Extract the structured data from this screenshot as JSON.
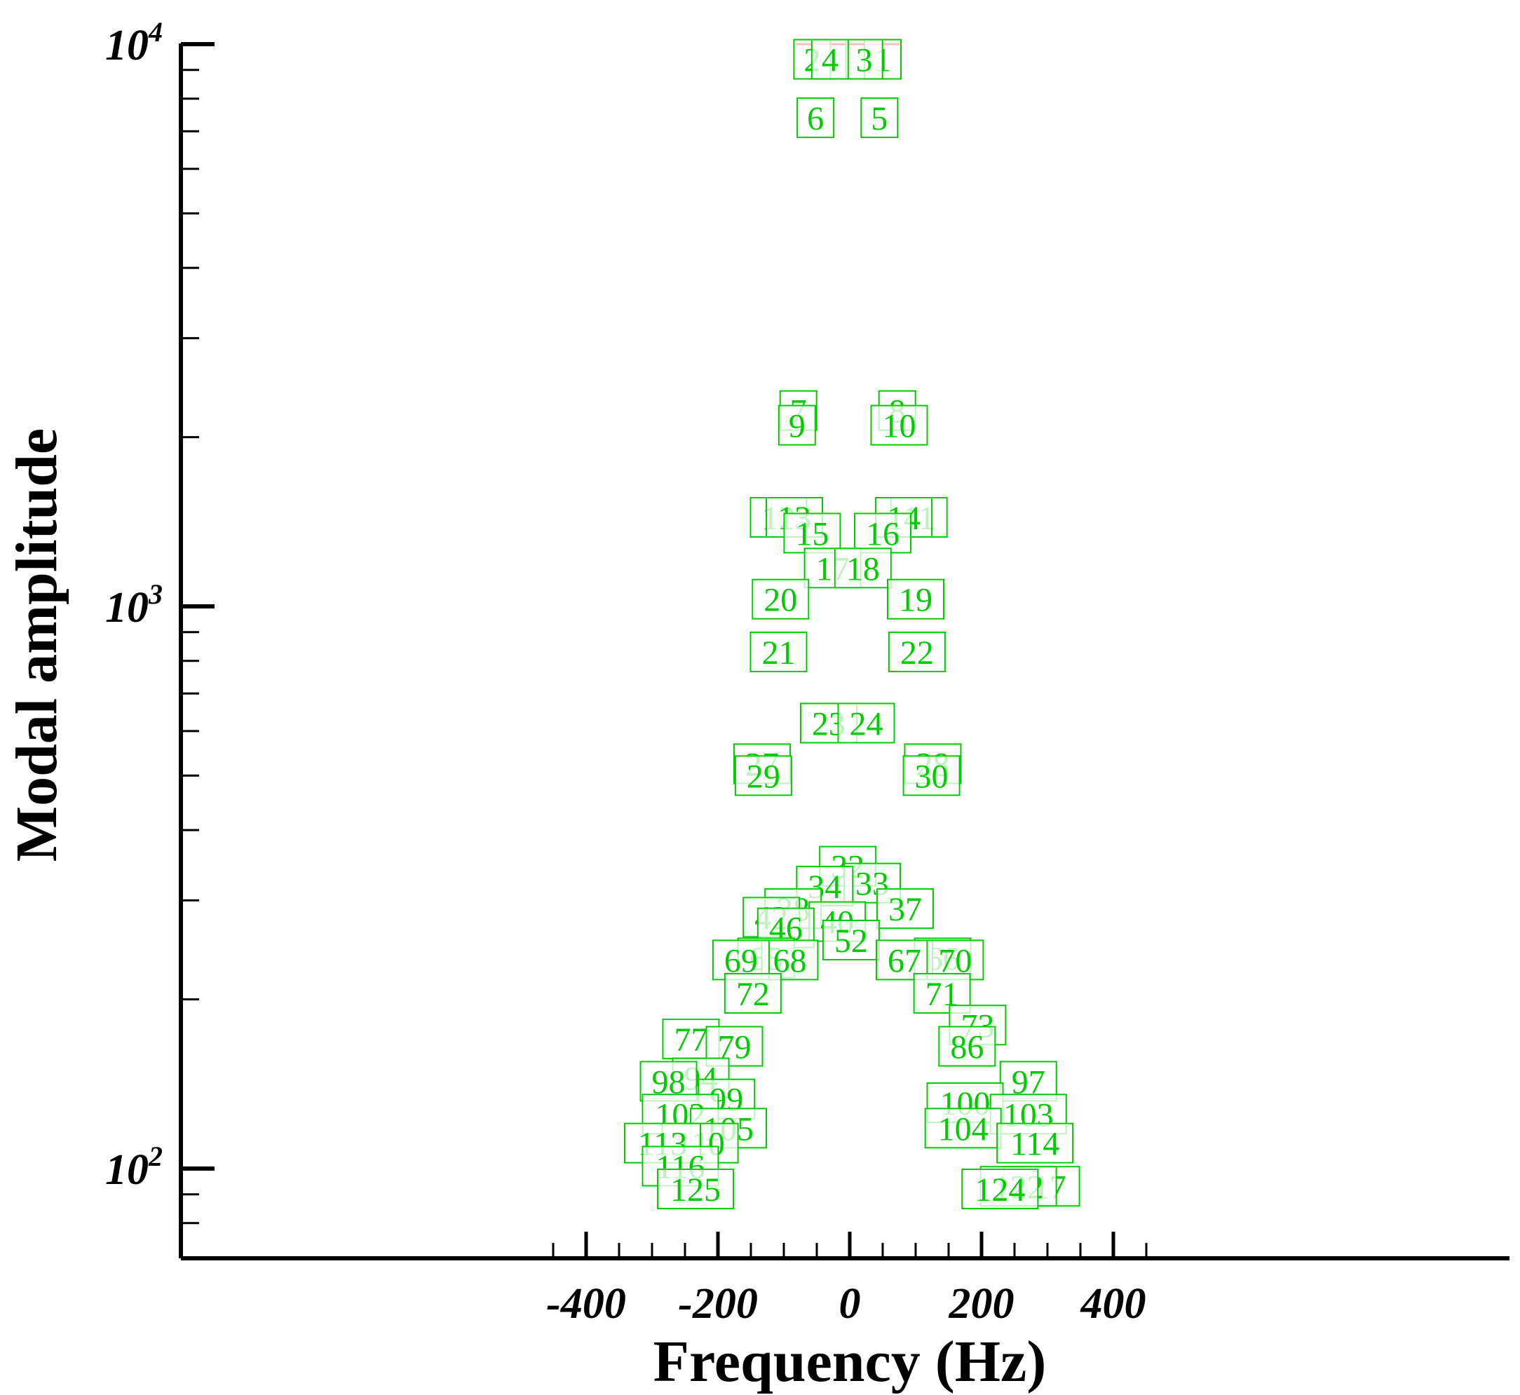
{
  "chart_data": {
    "type": "scatter",
    "title": "",
    "xlabel": "Frequency (Hz)",
    "ylabel": "Modal amplitude",
    "xlim": [
      -500,
      500
    ],
    "ylim": [
      75,
      10000
    ],
    "y_scale": "log",
    "grid": false,
    "x_ticks": [
      -400,
      -200,
      0,
      200,
      400
    ],
    "x_tick_labels": [
      "-400",
      "-200",
      "0",
      "200",
      "400"
    ],
    "y_ticks": [
      100,
      1000,
      10000
    ],
    "y_tick_labels": [
      {
        "base": "10",
        "exp": "2"
      },
      {
        "base": "10",
        "exp": "3"
      },
      {
        "base": "10",
        "exp": "4"
      }
    ],
    "label_color": "#00cc00",
    "marker_color": "#ee0000",
    "points": [
      {
        "label": "1",
        "x": 50,
        "y": 9400
      },
      {
        "label": "2",
        "x": -57,
        "y": 9400
      },
      {
        "label": "3",
        "x": 22,
        "y": 9400
      },
      {
        "label": "4",
        "x": -30,
        "y": 9400
      },
      {
        "label": "5",
        "x": 45,
        "y": 7400
      },
      {
        "label": "6",
        "x": -52,
        "y": 7400
      },
      {
        "label": "7",
        "x": -78,
        "y": 2230
      },
      {
        "label": "8",
        "x": 72,
        "y": 2230
      },
      {
        "label": "9",
        "x": -80,
        "y": 2100
      },
      {
        "label": "10",
        "x": 75,
        "y": 2100
      },
      {
        "label": "11",
        "x": 105,
        "y": 1440
      },
      {
        "label": "12",
        "x": -108,
        "y": 1440
      },
      {
        "label": "13",
        "x": -84,
        "y": 1440
      },
      {
        "label": "14",
        "x": 82,
        "y": 1440
      },
      {
        "label": "15",
        "x": -57,
        "y": 1350
      },
      {
        "label": "16",
        "x": 50,
        "y": 1350
      },
      {
        "label": "17",
        "x": -26,
        "y": 1170
      },
      {
        "label": "18",
        "x": 20,
        "y": 1170
      },
      {
        "label": "19",
        "x": 100,
        "y": 1030
      },
      {
        "label": "20",
        "x": -105,
        "y": 1030
      },
      {
        "label": "21",
        "x": -108,
        "y": 830
      },
      {
        "label": "22",
        "x": 102,
        "y": 830
      },
      {
        "label": "23",
        "x": -32,
        "y": 620
      },
      {
        "label": "24",
        "x": 25,
        "y": 620
      },
      {
        "label": "27",
        "x": -133,
        "y": 525
      },
      {
        "label": "28",
        "x": 126,
        "y": 525
      },
      {
        "label": "29",
        "x": -131,
        "y": 500
      },
      {
        "label": "30",
        "x": 124,
        "y": 500
      },
      {
        "label": "32",
        "x": -3,
        "y": 345
      },
      {
        "label": "33",
        "x": 34,
        "y": 322
      },
      {
        "label": "34",
        "x": -38,
        "y": 318
      },
      {
        "label": "37",
        "x": 84,
        "y": 290
      },
      {
        "label": "38",
        "x": -86,
        "y": 290
      },
      {
        "label": "40",
        "x": -19,
        "y": 275
      },
      {
        "label": "42",
        "x": -119,
        "y": 280
      },
      {
        "label": "46",
        "x": -97,
        "y": 268
      },
      {
        "label": "52",
        "x": 2,
        "y": 255
      },
      {
        "label": "65",
        "x": -127,
        "y": 237
      },
      {
        "label": "66",
        "x": 141,
        "y": 237
      },
      {
        "label": "67",
        "x": 83,
        "y": 235
      },
      {
        "label": "68",
        "x": -91,
        "y": 235
      },
      {
        "label": "69",
        "x": -165,
        "y": 235
      },
      {
        "label": "70",
        "x": 160,
        "y": 235
      },
      {
        "label": "71",
        "x": 140,
        "y": 205
      },
      {
        "label": "72",
        "x": -147,
        "y": 205
      },
      {
        "label": "73",
        "x": 194,
        "y": 180
      },
      {
        "label": "77",
        "x": -241,
        "y": 170
      },
      {
        "label": "79",
        "x": -175,
        "y": 165
      },
      {
        "label": "86",
        "x": 178,
        "y": 165
      },
      {
        "label": "94",
        "x": -226,
        "y": 145
      },
      {
        "label": "97",
        "x": 271,
        "y": 143
      },
      {
        "label": "98",
        "x": -275,
        "y": 143
      },
      {
        "label": "99",
        "x": -187,
        "y": 133
      },
      {
        "label": "100",
        "x": 175,
        "y": 131
      },
      {
        "label": "102",
        "x": -257,
        "y": 125
      },
      {
        "label": "103",
        "x": 271,
        "y": 125
      },
      {
        "label": "104",
        "x": 172,
        "y": 118
      },
      {
        "label": "105",
        "x": -184,
        "y": 118
      },
      {
        "label": "110",
        "x": -227,
        "y": 111
      },
      {
        "label": "113",
        "x": -284,
        "y": 111
      },
      {
        "label": "114",
        "x": 281,
        "y": 111
      },
      {
        "label": "116",
        "x": -257,
        "y": 101
      },
      {
        "label": "117",
        "x": 291,
        "y": 93
      },
      {
        "label": "122",
        "x": 256,
        "y": 93
      },
      {
        "label": "124",
        "x": 228,
        "y": 92
      },
      {
        "label": "125",
        "x": -234,
        "y": 92
      }
    ]
  }
}
